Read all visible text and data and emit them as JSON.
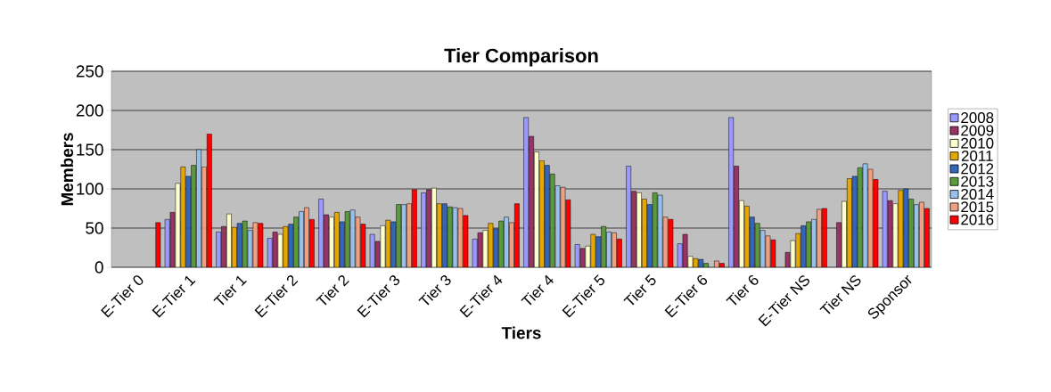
{
  "chart_data": {
    "type": "bar",
    "title": "Tier Comparison",
    "xlabel": "Tiers",
    "ylabel": "Members",
    "categories": [
      "E-Tier 0",
      "E-Tier 1",
      "Tier 1",
      "E-Tier 2",
      "Tier 2",
      "E-Tier 3",
      "Tier 3",
      "E-Tier 4",
      "Tier 4",
      "E-Tier 5",
      "Tier 5",
      "E-Tier 6",
      "Tier 6",
      "E-Tier NS",
      "Tier NS",
      "Sponsor"
    ],
    "ylim": [
      0,
      250
    ],
    "yticks": [
      0,
      50,
      100,
      150,
      200,
      250
    ],
    "grid": "y",
    "legend": "right",
    "series": [
      {
        "name": "2008",
        "color": "#9999ff",
        "values": [
          null,
          61,
          45,
          37,
          87,
          42,
          95,
          36,
          191,
          29,
          129,
          30,
          191,
          null,
          null,
          97
        ]
      },
      {
        "name": "2009",
        "color": "#993366",
        "values": [
          null,
          70,
          52,
          45,
          67,
          33,
          99,
          44,
          167,
          24,
          97,
          42,
          129,
          19,
          57,
          85
        ]
      },
      {
        "name": "2010",
        "color": "#ffffcc",
        "values": [
          null,
          107,
          68,
          42,
          64,
          53,
          101,
          47,
          147,
          27,
          95,
          14,
          85,
          34,
          84,
          81
        ]
      },
      {
        "name": "2011",
        "color": "#e6a800",
        "values": [
          null,
          128,
          51,
          52,
          70,
          60,
          81,
          56,
          136,
          42,
          87,
          11,
          78,
          43,
          113,
          98
        ]
      },
      {
        "name": "2012",
        "color": "#3366bb",
        "values": [
          null,
          116,
          56,
          55,
          58,
          58,
          81,
          49,
          130,
          39,
          80,
          10,
          64,
          53,
          116,
          100
        ]
      },
      {
        "name": "2013",
        "color": "#5a9a3c",
        "values": [
          null,
          130,
          59,
          64,
          71,
          80,
          77,
          59,
          119,
          52,
          95,
          5,
          56,
          58,
          127,
          87
        ]
      },
      {
        "name": "2014",
        "color": "#99c0e8",
        "values": [
          null,
          150,
          47,
          71,
          73,
          80,
          76,
          64,
          104,
          45,
          92,
          null,
          47,
          61,
          132,
          80
        ]
      },
      {
        "name": "2015",
        "color": "#f0a080",
        "values": [
          null,
          128,
          57,
          76,
          64,
          81,
          75,
          57,
          102,
          44,
          64,
          8,
          40,
          74,
          125,
          83
        ]
      },
      {
        "name": "2016",
        "color": "#ff0000",
        "values": [
          57,
          170,
          56,
          61,
          55,
          99,
          66,
          81,
          86,
          36,
          61,
          5,
          35,
          75,
          112,
          75
        ]
      }
    ]
  }
}
